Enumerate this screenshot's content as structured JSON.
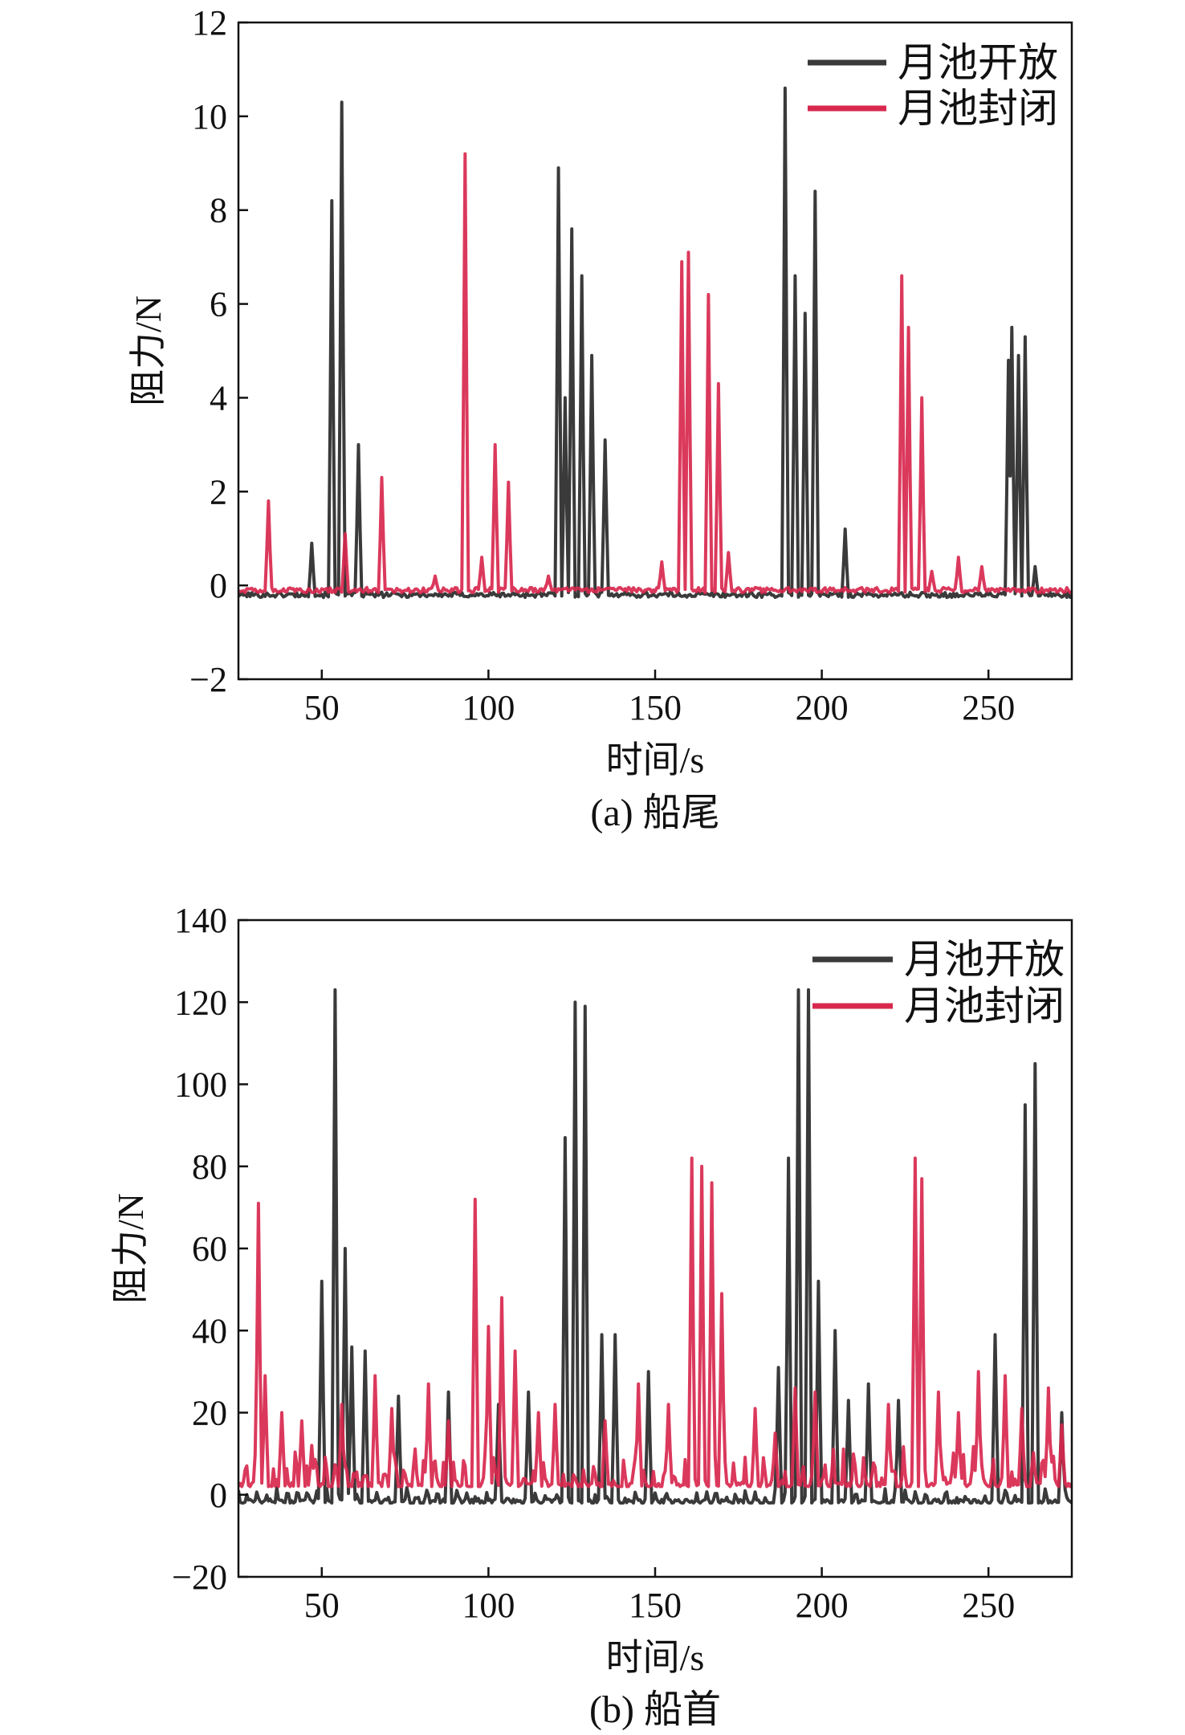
{
  "colors": {
    "open": "#3a3a3a",
    "closed": "#d8284e",
    "axis": "#111111"
  },
  "legend_labels": {
    "open": "月池开放",
    "closed": "月池封闭"
  },
  "chart_data": [
    {
      "type": "line",
      "caption": "(a) 船尾",
      "xlabel": "时间/s",
      "ylabel": "阻力/N",
      "xlim": [
        25,
        275
      ],
      "ylim": [
        -2,
        12
      ],
      "xticks": [
        50,
        100,
        150,
        200,
        250
      ],
      "yticks": [
        -2,
        0,
        2,
        4,
        6,
        8,
        10,
        12
      ],
      "ytick_labels": [
        "−2",
        "0",
        "2",
        "4",
        "6",
        "8",
        "10",
        "12"
      ],
      "legend_position": "top-right",
      "baseline_open": -0.2,
      "baseline_closed": -0.1,
      "series": [
        {
          "name": "月池开放",
          "color": "#3a3a3a",
          "peaks": [
            [
              47,
              0.9
            ],
            [
              53,
              8.2
            ],
            [
              56,
              10.3
            ],
            [
              61,
              3.0
            ],
            [
              121,
              8.9
            ],
            [
              123,
              4.0
            ],
            [
              125,
              7.6
            ],
            [
              128,
              6.6
            ],
            [
              131,
              4.9
            ],
            [
              135,
              3.1
            ],
            [
              189,
              10.6
            ],
            [
              192,
              6.6
            ],
            [
              195,
              5.8
            ],
            [
              198,
              8.4
            ],
            [
              207,
              1.2
            ],
            [
              256,
              4.8
            ],
            [
              257,
              5.5
            ],
            [
              259,
              4.9
            ],
            [
              261,
              5.3
            ],
            [
              264,
              0.4
            ]
          ]
        },
        {
          "name": "月池封闭",
          "color": "#d8284e",
          "peaks": [
            [
              34,
              1.8
            ],
            [
              57,
              1.1
            ],
            [
              68,
              2.3
            ],
            [
              84,
              0.2
            ],
            [
              93,
              9.2
            ],
            [
              98,
              0.6
            ],
            [
              102,
              3.0
            ],
            [
              106,
              2.2
            ],
            [
              118,
              0.2
            ],
            [
              152,
              0.5
            ],
            [
              158,
              6.9
            ],
            [
              160,
              7.1
            ],
            [
              166,
              6.2
            ],
            [
              169,
              4.3
            ],
            [
              172,
              0.7
            ],
            [
              224,
              6.6
            ],
            [
              226,
              5.5
            ],
            [
              230,
              4.0
            ],
            [
              233,
              0.3
            ],
            [
              241,
              0.6
            ],
            [
              248,
              0.4
            ]
          ]
        }
      ]
    },
    {
      "type": "line",
      "caption": "(b) 船首",
      "xlabel": "时间/s",
      "ylabel": "阻力/N",
      "xlim": [
        25,
        275
      ],
      "ylim": [
        -20,
        140
      ],
      "xticks": [
        50,
        100,
        150,
        200,
        250
      ],
      "yticks": [
        -20,
        0,
        20,
        40,
        60,
        80,
        100,
        120,
        140
      ],
      "ytick_labels": [
        "−20",
        "0",
        "20",
        "40",
        "60",
        "80",
        "100",
        "120",
        "140"
      ],
      "legend_position": "top-right",
      "baseline_open": -2,
      "baseline_closed": 2,
      "series": [
        {
          "name": "月池开放",
          "color": "#3a3a3a",
          "peaks": [
            [
              50,
              52
            ],
            [
              54,
              123
            ],
            [
              57,
              60
            ],
            [
              59,
              36
            ],
            [
              63,
              35
            ],
            [
              73,
              24
            ],
            [
              88,
              25
            ],
            [
              103,
              22
            ],
            [
              112,
              25
            ],
            [
              123,
              87
            ],
            [
              126,
              120
            ],
            [
              129,
              119
            ],
            [
              134,
              39
            ],
            [
              138,
              39
            ],
            [
              148,
              30
            ],
            [
              187,
              31
            ],
            [
              190,
              82
            ],
            [
              193,
              123
            ],
            [
              196,
              123
            ],
            [
              199,
              52
            ],
            [
              204,
              40
            ],
            [
              208,
              23
            ],
            [
              214,
              27
            ],
            [
              223,
              23
            ],
            [
              252,
              39
            ],
            [
              261,
              95
            ],
            [
              264,
              105
            ],
            [
              272,
              20
            ]
          ]
        },
        {
          "name": "月池封闭",
          "color": "#d8284e",
          "peaks": [
            [
              31,
              71
            ],
            [
              33,
              29
            ],
            [
              38,
              20
            ],
            [
              44,
              18
            ],
            [
              47,
              12
            ],
            [
              56,
              22
            ],
            [
              66,
              29
            ],
            [
              71,
              21
            ],
            [
              82,
              27
            ],
            [
              88,
              18
            ],
            [
              96,
              72
            ],
            [
              100,
              41
            ],
            [
              104,
              48
            ],
            [
              108,
              35
            ],
            [
              115,
              20
            ],
            [
              120,
              22
            ],
            [
              135,
              18
            ],
            [
              145,
              27
            ],
            [
              154,
              22
            ],
            [
              161,
              82
            ],
            [
              164,
              80
            ],
            [
              167,
              76
            ],
            [
              170,
              49
            ],
            [
              180,
              21
            ],
            [
              186,
              15
            ],
            [
              192,
              26
            ],
            [
              198,
              25
            ],
            [
              220,
              22
            ],
            [
              228,
              82
            ],
            [
              230,
              77
            ],
            [
              235,
              25
            ],
            [
              241,
              20
            ],
            [
              247,
              30
            ],
            [
              255,
              29
            ],
            [
              260,
              21
            ],
            [
              268,
              26
            ],
            [
              272,
              17
            ]
          ]
        }
      ]
    }
  ]
}
